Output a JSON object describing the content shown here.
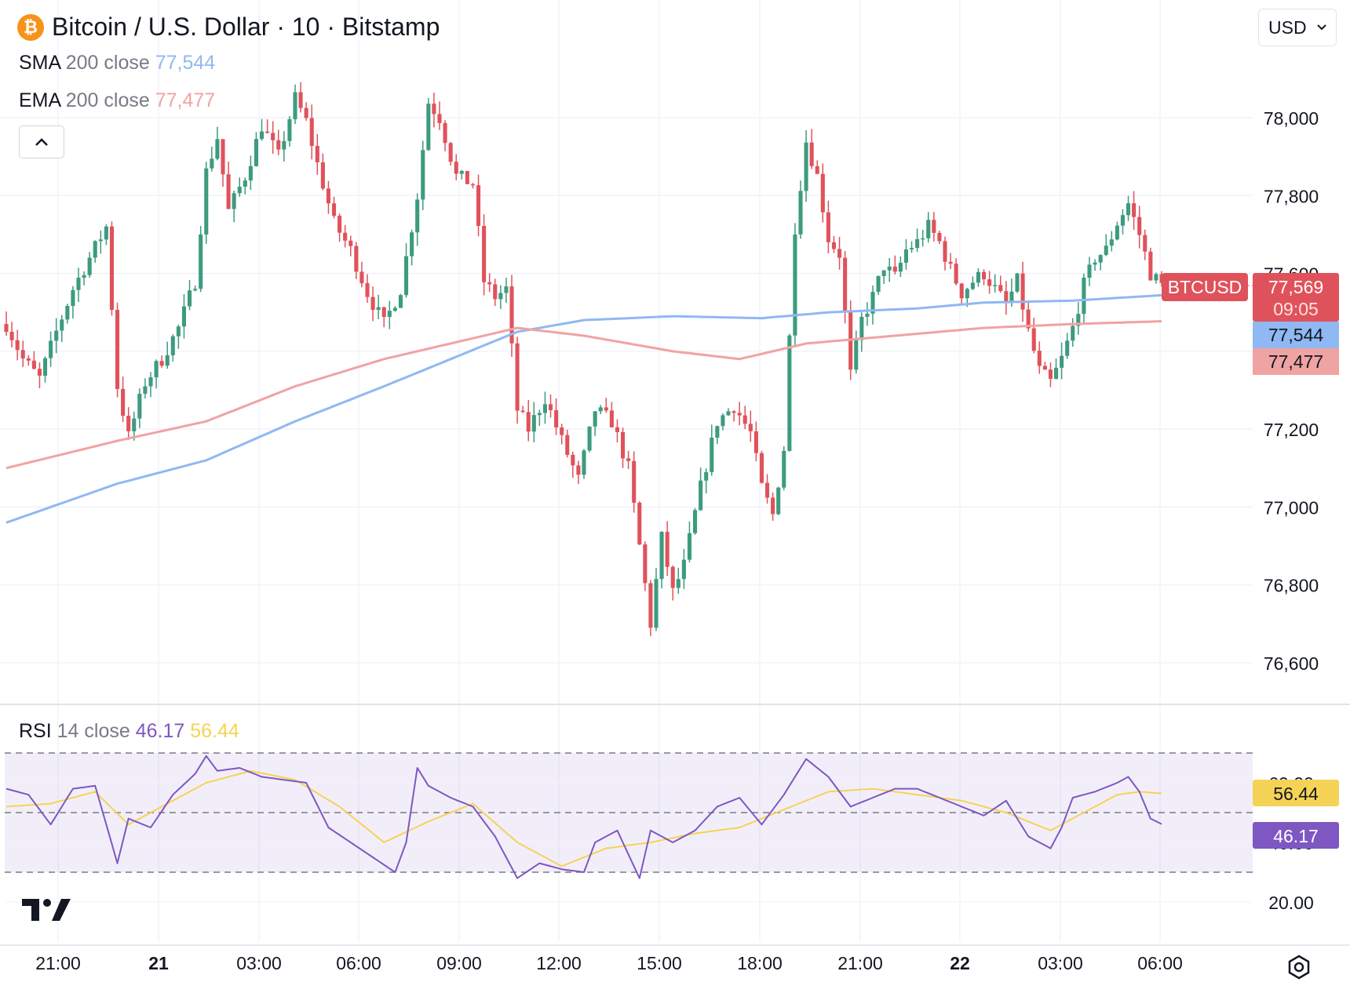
{
  "header": {
    "symbol_title": "Bitcoin / U.S. Dollar · 10 · Bitstamp",
    "coin_icon": "bitcoin-icon",
    "currency": "USD"
  },
  "indicators": {
    "sma": {
      "label": "SMA",
      "params": "200 close",
      "value": "77,544",
      "color": "#90b8f2"
    },
    "ema": {
      "label": "EMA",
      "params": "200 close",
      "value": "77,477",
      "color": "#f0a3a3"
    },
    "rsi": {
      "label": "RSI",
      "params": "14 close",
      "value": "46.17",
      "ma_value": "56.44",
      "color": "#7e57c2",
      "ma_color": "#f5d356"
    }
  },
  "price_tags": {
    "symbol": "BTCUSD",
    "last_price": "77,569",
    "countdown": "09:05",
    "sma": "77,544",
    "ema": "77,477",
    "rsi": "46.17",
    "rsi_ma": "56.44"
  },
  "colors": {
    "up": "#26a69a",
    "down": "#ef5350",
    "up_fill": "#3d9b7f",
    "down_fill": "#e0525b"
  },
  "chart_data": {
    "type": "candlestick",
    "interval_minutes": 10,
    "y_ticks": [
      "76,600",
      "76,800",
      "77,000",
      "77,200",
      "77,400",
      "77,600",
      "77,800",
      "78,000"
    ],
    "y_range": [
      76500,
      78300
    ],
    "x_ticks": [
      "21:00",
      "21",
      "03:00",
      "06:00",
      "09:00",
      "12:00",
      "15:00",
      "18:00",
      "21:00",
      "22",
      "03:00",
      "06:00"
    ],
    "x_ticks_bold": [
      false,
      true,
      false,
      false,
      false,
      false,
      false,
      false,
      false,
      true,
      false,
      false
    ],
    "grid": true,
    "price_path": [
      [
        0,
        77470
      ],
      [
        1.5,
        77380
      ],
      [
        3,
        77330
      ],
      [
        4.5,
        77450
      ],
      [
        6,
        77560
      ],
      [
        7.5,
        77640
      ],
      [
        9,
        77720
      ],
      [
        10,
        77310
      ],
      [
        11,
        77180
      ],
      [
        12.5,
        77320
      ],
      [
        14,
        77380
      ],
      [
        15.5,
        77460
      ],
      [
        17,
        77580
      ],
      [
        18,
        77860
      ],
      [
        19,
        77950
      ],
      [
        20,
        77760
      ],
      [
        21.5,
        77850
      ],
      [
        23,
        77980
      ],
      [
        24.5,
        77900
      ],
      [
        26,
        78050
      ],
      [
        27,
        77990
      ],
      [
        28,
        77880
      ],
      [
        29.5,
        77730
      ],
      [
        31,
        77660
      ],
      [
        32.5,
        77550
      ],
      [
        34,
        77470
      ],
      [
        35.5,
        77560
      ],
      [
        37,
        77800
      ],
      [
        38,
        78040
      ],
      [
        39,
        78000
      ],
      [
        40.5,
        77850
      ],
      [
        42,
        77830
      ],
      [
        43,
        77580
      ],
      [
        44,
        77540
      ],
      [
        45,
        77560
      ],
      [
        46,
        77250
      ],
      [
        47,
        77200
      ],
      [
        48.5,
        77280
      ],
      [
        50,
        77170
      ],
      [
        51.5,
        77070
      ],
      [
        53,
        77250
      ],
      [
        54.5,
        77220
      ],
      [
        56,
        77100
      ],
      [
        57,
        76900
      ],
      [
        58,
        76700
      ],
      [
        59,
        76920
      ],
      [
        60,
        76780
      ],
      [
        61,
        76850
      ],
      [
        62.5,
        77050
      ],
      [
        64,
        77220
      ],
      [
        65.5,
        77260
      ],
      [
        67,
        77190
      ],
      [
        68,
        77050
      ],
      [
        69,
        76980
      ],
      [
        70,
        77150
      ],
      [
        71,
        77720
      ],
      [
        72,
        77940
      ],
      [
        73,
        77850
      ],
      [
        74,
        77690
      ],
      [
        75,
        77650
      ],
      [
        76,
        77340
      ],
      [
        77,
        77480
      ],
      [
        78,
        77540
      ],
      [
        79,
        77620
      ],
      [
        80,
        77590
      ],
      [
        81,
        77660
      ],
      [
        82,
        77680
      ],
      [
        83,
        77720
      ],
      [
        84,
        77680
      ],
      [
        85,
        77610
      ],
      [
        86,
        77550
      ],
      [
        87,
        77580
      ],
      [
        88,
        77600
      ],
      [
        89,
        77560
      ],
      [
        90,
        77520
      ],
      [
        91,
        77580
      ],
      [
        92,
        77450
      ],
      [
        93,
        77350
      ],
      [
        94,
        77320
      ],
      [
        95,
        77380
      ],
      [
        96,
        77460
      ],
      [
        97,
        77570
      ],
      [
        98,
        77640
      ],
      [
        99,
        77660
      ],
      [
        100,
        77730
      ],
      [
        101,
        77780
      ],
      [
        102,
        77700
      ],
      [
        103,
        77600
      ],
      [
        104,
        77569
      ]
    ],
    "sma_series": [
      [
        0,
        76960
      ],
      [
        10,
        77060
      ],
      [
        18,
        77120
      ],
      [
        26,
        77220
      ],
      [
        34,
        77310
      ],
      [
        40,
        77380
      ],
      [
        46,
        77450
      ],
      [
        52,
        77480
      ],
      [
        60,
        77490
      ],
      [
        68,
        77485
      ],
      [
        74,
        77500
      ],
      [
        82,
        77510
      ],
      [
        88,
        77525
      ],
      [
        96,
        77530
      ],
      [
        104,
        77544
      ]
    ],
    "ema_series": [
      [
        0,
        77100
      ],
      [
        10,
        77170
      ],
      [
        18,
        77220
      ],
      [
        26,
        77310
      ],
      [
        34,
        77380
      ],
      [
        40,
        77420
      ],
      [
        46,
        77460
      ],
      [
        52,
        77440
      ],
      [
        60,
        77400
      ],
      [
        66,
        77380
      ],
      [
        72,
        77420
      ],
      [
        80,
        77440
      ],
      [
        88,
        77460
      ],
      [
        96,
        77470
      ],
      [
        104,
        77477
      ]
    ],
    "rsi": {
      "ticks": [
        "20.00",
        "40.00",
        "60.00"
      ],
      "y_range": [
        17,
        75
      ],
      "bands": [
        30,
        50,
        70
      ],
      "rsi_series": [
        [
          0,
          58
        ],
        [
          2,
          56
        ],
        [
          4,
          46
        ],
        [
          6,
          58
        ],
        [
          8,
          59
        ],
        [
          10,
          33
        ],
        [
          11,
          48
        ],
        [
          13,
          45
        ],
        [
          15,
          56
        ],
        [
          17,
          63
        ],
        [
          18,
          69
        ],
        [
          19,
          64
        ],
        [
          21,
          65
        ],
        [
          23,
          62
        ],
        [
          25,
          61
        ],
        [
          27,
          60
        ],
        [
          29,
          45
        ],
        [
          31,
          40
        ],
        [
          33,
          35
        ],
        [
          35,
          30
        ],
        [
          36,
          40
        ],
        [
          37,
          65
        ],
        [
          38,
          59
        ],
        [
          40,
          55
        ],
        [
          42,
          52
        ],
        [
          44,
          42
        ],
        [
          46,
          28
        ],
        [
          48,
          33
        ],
        [
          50,
          31
        ],
        [
          52,
          30
        ],
        [
          53,
          40
        ],
        [
          55,
          44
        ],
        [
          57,
          28
        ],
        [
          58,
          44
        ],
        [
          60,
          40
        ],
        [
          62,
          44
        ],
        [
          64,
          52
        ],
        [
          66,
          55
        ],
        [
          68,
          46
        ],
        [
          70,
          56
        ],
        [
          72,
          68
        ],
        [
          74,
          62
        ],
        [
          76,
          52
        ],
        [
          78,
          55
        ],
        [
          80,
          58
        ],
        [
          82,
          58
        ],
        [
          84,
          55
        ],
        [
          86,
          52
        ],
        [
          88,
          49
        ],
        [
          90,
          54
        ],
        [
          92,
          42
        ],
        [
          94,
          38
        ],
        [
          95,
          45
        ],
        [
          96,
          55
        ],
        [
          98,
          57
        ],
        [
          100,
          60
        ],
        [
          101,
          62
        ],
        [
          102,
          57
        ],
        [
          103,
          48
        ],
        [
          104,
          46.17
        ]
      ],
      "ma_series": [
        [
          0,
          52
        ],
        [
          4,
          53
        ],
        [
          8,
          57
        ],
        [
          11,
          46
        ],
        [
          14,
          52
        ],
        [
          18,
          60
        ],
        [
          22,
          64
        ],
        [
          26,
          61
        ],
        [
          30,
          52
        ],
        [
          34,
          40
        ],
        [
          38,
          47
        ],
        [
          42,
          53
        ],
        [
          46,
          40
        ],
        [
          50,
          32
        ],
        [
          54,
          38
        ],
        [
          58,
          40
        ],
        [
          62,
          43
        ],
        [
          66,
          45
        ],
        [
          70,
          51
        ],
        [
          74,
          57
        ],
        [
          78,
          58
        ],
        [
          82,
          56
        ],
        [
          86,
          54
        ],
        [
          90,
          50
        ],
        [
          94,
          44
        ],
        [
          98,
          52
        ],
        [
          100,
          56
        ],
        [
          102,
          57
        ],
        [
          104,
          56.44
        ]
      ]
    }
  }
}
